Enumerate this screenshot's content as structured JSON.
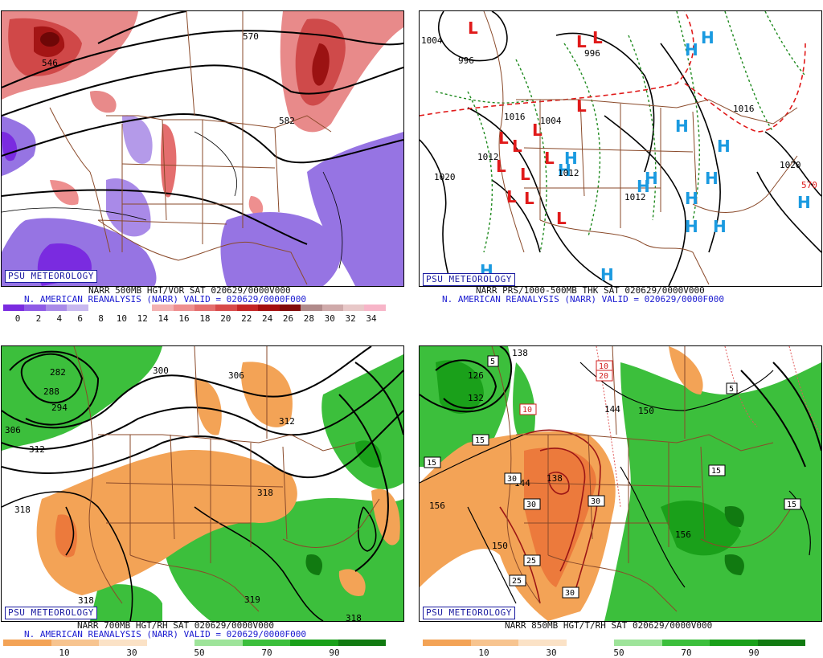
{
  "psu_label": "PSU METEOROLOGY",
  "panels": [
    {
      "caption1": "NARR 500MB HGT/VOR SAT 020629/0000V000",
      "caption2": "N. AMERICAN REANALYSIS (NARR) VALID = 020629/0000F000",
      "colorbar_colors": [
        "#7a2be0",
        "#8f5ae6",
        "#a98ae8",
        "#c8b8ef",
        "#ffffff",
        "#ffffff",
        "#ffffff",
        "#f3b1b1",
        "#ee8f8f",
        "#e46e6e",
        "#d84a4a",
        "#c42525",
        "#a50f0f",
        "#820a0a",
        "#b08a8a",
        "#cfaaaa",
        "#e8c8c8",
        "#f7b5c8"
      ],
      "colorbar_ticks": [
        "0",
        "2",
        "4",
        "6",
        "8",
        "10",
        "12",
        "14",
        "16",
        "18",
        "20",
        "22",
        "24",
        "26",
        "28",
        "30",
        "32",
        "34"
      ],
      "contour_labels": [
        "570",
        "582",
        "546"
      ]
    },
    {
      "caption1": "NARR PRS/1000-500MB THK SAT 020629/0000V000",
      "caption2": "N. AMERICAN REANALYSIS (NARR) VALID = 020629/0000F000",
      "contour_labels": [
        "1004",
        "996",
        "996",
        "1020",
        "1012",
        "1020",
        "1012",
        "1016",
        "570",
        "1016",
        "1004",
        "1012"
      ]
    },
    {
      "caption1": "NARR 700MB HGT/RH SAT 020629/0000V000",
      "caption2": "N. AMERICAN REANALYSIS (NARR) VALID = 020629/0000F000",
      "colorbar_colors": [
        "#f3a356",
        "#f7c48f",
        "#fbe2c6",
        "#ffffff",
        "#9ee49a",
        "#3cbf3c",
        "#1aa01a",
        "#117a11"
      ],
      "colorbar_ticks": [
        "10",
        "30",
        "50",
        "70",
        "90"
      ],
      "contour_labels": [
        "282",
        "288",
        "294",
        "306",
        "312",
        "300",
        "306",
        "312",
        "318",
        "318",
        "318",
        "319",
        "318"
      ]
    },
    {
      "caption1": "NARR 850MB HGT/T/RH SAT 020629/0000V000",
      "caption2": "",
      "colorbar_colors": [
        "#f3a356",
        "#f7c48f",
        "#fbe2c6",
        "#ffffff",
        "#9ee49a",
        "#3cbf3c",
        "#1aa01a",
        "#117a11"
      ],
      "colorbar_ticks": [
        "10",
        "30",
        "50",
        "70",
        "90"
      ],
      "contour_labels": [
        "138",
        "126",
        "132",
        "144",
        "150",
        "156",
        "150",
        "156",
        "144",
        "138"
      ],
      "box_labels": [
        "5",
        "10",
        "20",
        "10",
        "15",
        "15",
        "30",
        "30",
        "30",
        "25",
        "25",
        "30",
        "5",
        "15",
        "15"
      ]
    }
  ]
}
